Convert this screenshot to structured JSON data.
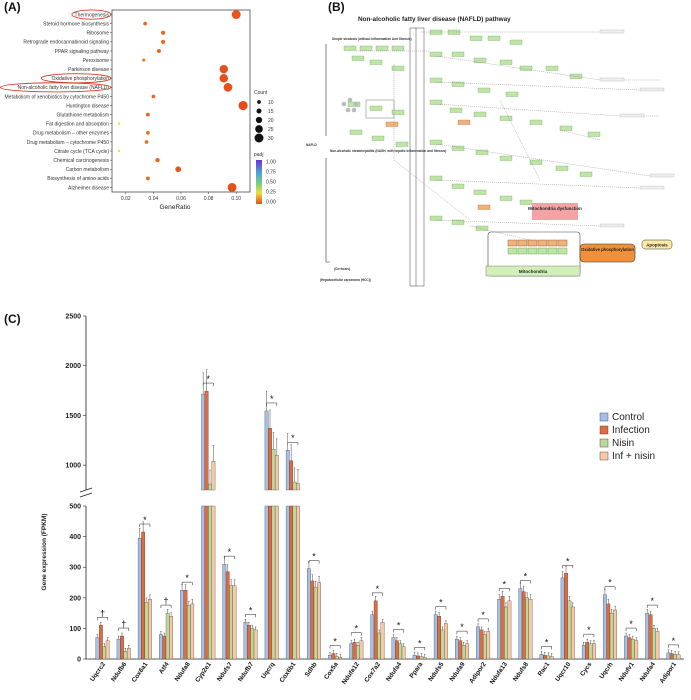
{
  "panels": {
    "a": "(A)",
    "b": "(B)",
    "c": "(C)"
  },
  "chart_data": [
    {
      "type": "scatter",
      "panel": "(A)",
      "xlabel": "GeneRatio",
      "xlim": [
        0.01,
        0.11
      ],
      "xticks": [
        "0.02",
        "0.04",
        "0.06",
        "0.08",
        "0.10"
      ],
      "categories": [
        "Thermogenesis",
        "Steroid hormone biosynthesis",
        "Ribosome",
        "Retrograde endocannabinoid signaling",
        "PPAR signaling pathway",
        "Peroxisome",
        "Parkinson disease",
        "Oxidative phosphorylation",
        "Non-alcoholic fatty liver disease (NAFLD)",
        "Metabolism of xenobiotics by cytochrome P450",
        "Huntington disease",
        "Glutathione metabolism",
        "Fat digestion and absorption",
        "Drug metabolism – other enzymes",
        "Drug metabolism – cytochrome P450",
        "Citrate cycle (TCA cycle)",
        "Chemical carcinogenesis",
        "Carbon metabolism",
        "Biosynthesis of amino acids",
        "Alzheimer disease"
      ],
      "gene_ratio": [
        0.1,
        0.034,
        0.047,
        0.047,
        0.044,
        0.033,
        0.091,
        0.091,
        0.094,
        0.04,
        0.105,
        0.036,
        0.015,
        0.036,
        0.035,
        0.015,
        0.043,
        0.058,
        0.036,
        0.097
      ],
      "count": [
        30,
        10,
        12,
        12,
        11,
        8,
        28,
        28,
        29,
        10,
        31,
        10,
        5,
        10,
        10,
        5,
        12,
        18,
        10,
        30
      ],
      "padj": [
        0.02,
        0.05,
        0.06,
        0.06,
        0.05,
        0.08,
        0.01,
        0.01,
        0.01,
        0.05,
        0.0,
        0.04,
        0.25,
        0.06,
        0.06,
        0.25,
        0.04,
        0.02,
        0.05,
        0.01
      ],
      "circled": [
        "Thermogenesis",
        "Oxidative phosphorylation",
        "Non-alcoholic fatty liver disease (NAFLD)"
      ],
      "legend_size_title": "Count",
      "legend_sizes": [
        "10",
        "15",
        "20",
        "25",
        "30"
      ],
      "legend_color_title": "padj",
      "legend_colors": [
        "1.00",
        "0.75",
        "0.50",
        "0.25",
        "0.00"
      ]
    },
    {
      "type": "bar",
      "panel": "(C)",
      "ylabel": "Gene expression (FPKM)",
      "y_ticks_upper": [
        "2500",
        "2000",
        "1500",
        "1000"
      ],
      "y_ticks_lower": [
        "500",
        "400",
        "300",
        "200",
        "100",
        "0"
      ],
      "ylim_lower": [
        0,
        500
      ],
      "ylim_upper": [
        750,
        2500
      ],
      "series": [
        {
          "name": "Control",
          "color": "#a4c0e6"
        },
        {
          "name": "Infection",
          "color": "#e36a3c"
        },
        {
          "name": "Nisin",
          "color": "#bcd89a"
        },
        {
          "name": "Inf + nisin",
          "color": "#f7c8a3"
        }
      ],
      "categories": [
        "Uqcrc2",
        "Ndufb6",
        "Cox6a1",
        "Atf4",
        "Ndufa8",
        "Cyp2e1",
        "Ndufs7",
        "Ndufb7",
        "Uqcrq",
        "Cox6b1",
        "Sdhb",
        "Cox5a",
        "Ndufa12",
        "Cox7a2",
        "Ndufa4",
        "Ppara",
        "Ndufs5",
        "Ndufa9",
        "Adipor2",
        "Ndufa13",
        "Ndufs8",
        "Rac1",
        "Uqcr10",
        "Cycs",
        "Uqcrh",
        "Ndufv1",
        "Ndufa4",
        "Adipor1"
      ],
      "values": [
        [
          70,
          110,
          40,
          60
        ],
        [
          65,
          75,
          25,
          35
        ],
        [
          395,
          415,
          185,
          195
        ],
        [
          80,
          75,
          150,
          140
        ],
        [
          225,
          225,
          175,
          180
        ],
        [
          1715,
          1745,
          810,
          1040
        ],
        [
          310,
          285,
          240,
          240
        ],
        [
          120,
          110,
          100,
          95
        ],
        [
          1545,
          1370,
          1160,
          1100
        ],
        [
          1150,
          1045,
          830,
          815
        ],
        [
          295,
          255,
          235,
          250
        ],
        [
          12,
          18,
          8,
          6
        ],
        [
          50,
          55,
          45,
          60
        ],
        [
          145,
          190,
          85,
          120
        ],
        [
          70,
          60,
          50,
          40
        ],
        [
          12,
          10,
          8,
          5
        ],
        [
          145,
          140,
          95,
          115
        ],
        [
          65,
          60,
          45,
          50
        ],
        [
          105,
          95,
          80,
          90
        ],
        [
          195,
          205,
          170,
          190
        ],
        [
          230,
          220,
          200,
          195
        ],
        [
          15,
          12,
          10,
          8
        ],
        [
          265,
          280,
          190,
          170
        ],
        [
          45,
          55,
          50,
          50
        ],
        [
          210,
          180,
          150,
          160
        ],
        [
          75,
          70,
          65,
          60
        ],
        [
          150,
          145,
          100,
          90
        ],
        [
          20,
          18,
          15,
          14
        ]
      ],
      "stars": [
        "†",
        "†",
        "*",
        "†",
        "*",
        "*",
        "*",
        "*",
        "*",
        "*",
        "*",
        "*",
        "*",
        "*",
        "*",
        "*",
        "*",
        "*",
        "*",
        "*",
        "*",
        "*",
        "*",
        "*",
        "*",
        "*",
        "*",
        "*"
      ]
    }
  ],
  "pathway": {
    "title": "Non-alcoholic fatty liver disease (NAFLD) pathway",
    "stage1": "Simple steatosis (without inflammation And fibrosis)",
    "nafld_label": "NAFLD",
    "stage2": "Non-alcoholic steatohepatitis (NASH, with hepatic inflammation and fibrosis)",
    "stage3": "(Cirrhosis)",
    "stage4": "(Hepatocellular carcinoma (HCC))",
    "mito_dysfunction": "Mitochondria dysfunction",
    "oxphos": "Oxidative phosphorylation",
    "apoptosis": "Apoptosis",
    "mitochondria": "Mitochondria"
  }
}
